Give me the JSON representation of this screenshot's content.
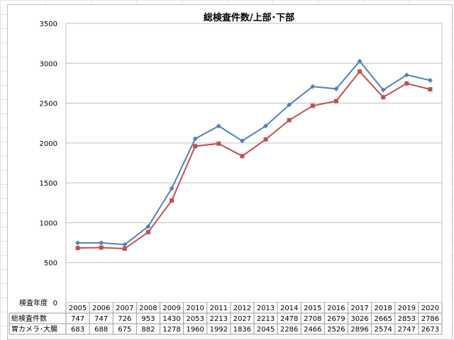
{
  "chart_data": {
    "type": "line",
    "title": "総検査件数/上部･下部",
    "categories": [
      "2005",
      "2006",
      "2007",
      "2008",
      "2009",
      "2010",
      "2011",
      "2012",
      "2013",
      "2014",
      "2015",
      "2016",
      "2017",
      "2018",
      "2019",
      "2020"
    ],
    "category_header": "検査年度",
    "series": [
      {
        "name": "総検査件数",
        "color": "#4f81bd",
        "marker": "diamond",
        "values": [
          747,
          747,
          726,
          953,
          1430,
          2053,
          2213,
          2027,
          2213,
          2478,
          2708,
          2679,
          3026,
          2665,
          2853,
          2786
        ]
      },
      {
        "name": "胃カメラ･大腸",
        "color": "#c0504d",
        "marker": "square",
        "values": [
          683,
          688,
          675,
          882,
          1278,
          1960,
          1992,
          1836,
          2045,
          2286,
          2466,
          2526,
          2896,
          2574,
          2747,
          2673
        ]
      }
    ],
    "yticks": [
      "0",
      "500",
      "1000",
      "1500",
      "2000",
      "2500",
      "3000",
      "3500"
    ],
    "ylim": [
      0,
      3500
    ],
    "grid": true,
    "legend": "data-table"
  }
}
